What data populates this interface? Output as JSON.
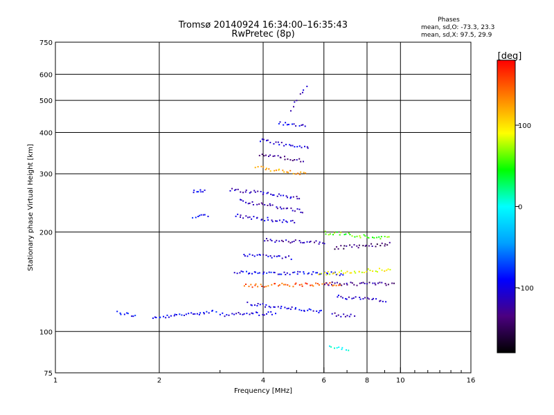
{
  "title": {
    "line1": "Tromsø 20140924 16:34:00–16:35:43",
    "line2": "RwPretec (8p)"
  },
  "stats": {
    "heading": "Phases",
    "o_mode": "mean, sd,O:  -73.3, 23.3",
    "x_mode": "mean, sd,X:  97.5, 29.9"
  },
  "chart_data": {
    "type": "scatter",
    "xlabel": "Frequency [MHz]",
    "ylabel": "Stationary phase Virtual Height [km]",
    "xscale": "log",
    "yscale": "log",
    "xlim": [
      1,
      16
    ],
    "ylim": [
      75,
      750
    ],
    "x_ticks": [
      1,
      2,
      4,
      6,
      8,
      10,
      16
    ],
    "x_tick_labels": [
      "1",
      "2",
      "4",
      "6",
      "8",
      "10",
      "16"
    ],
    "y_ticks": [
      75,
      100,
      200,
      300,
      400,
      500,
      600,
      750
    ],
    "y_tick_labels": [
      "75",
      "100",
      "200",
      "300",
      "400",
      "500",
      "600",
      "750"
    ],
    "grid": true,
    "colorbar": {
      "label": "[deg]",
      "ticks": [
        100,
        0,
        -100
      ],
      "tick_labels": [
        "100",
        "0",
        "-100"
      ],
      "range": [
        -180,
        180
      ],
      "colormap": [
        "#000000",
        "#4b0080",
        "#0000ff",
        "#00a0ff",
        "#00ffff",
        "#00ff00",
        "#ffff00",
        "#ff8000",
        "#ff0000"
      ]
    },
    "traces": [
      {
        "x": [
          1.5,
          1.7
        ],
        "y": [
          115,
          112
        ],
        "phase": -90
      },
      {
        "x": [
          1.9,
          2.9
        ],
        "y": [
          110,
          116
        ],
        "phase": -92
      },
      {
        "x": [
          2.5,
          2.7
        ],
        "y": [
          267,
          267
        ],
        "phase": -95
      },
      {
        "x": [
          2.5,
          2.75
        ],
        "y": [
          222,
          225
        ],
        "phase": -95
      },
      {
        "x": [
          3.0,
          4.3
        ],
        "y": [
          113,
          114
        ],
        "phase": -105
      },
      {
        "x": [
          3.6,
          5.9
        ],
        "y": [
          122,
          115
        ],
        "phase": -100
      },
      {
        "x": [
          3.2,
          5.1
        ],
        "y": [
          270,
          255
        ],
        "phase": -110
      },
      {
        "x": [
          3.4,
          5.2
        ],
        "y": [
          250,
          232
        ],
        "phase": -115
      },
      {
        "x": [
          3.3,
          4.9
        ],
        "y": [
          225,
          215
        ],
        "phase": -110
      },
      {
        "x": [
          3.8,
          5.3
        ],
        "y": [
          315,
          300
        ],
        "phase": 120
      },
      {
        "x": [
          3.9,
          5.2
        ],
        "y": [
          345,
          330
        ],
        "phase": -125
      },
      {
        "x": [
          3.9,
          5.4
        ],
        "y": [
          380,
          360
        ],
        "phase": -105
      },
      {
        "x": [
          4.4,
          5.3
        ],
        "y": [
          430,
          420
        ],
        "phase": -100
      },
      {
        "x": [
          4.8,
          5.3
        ],
        "y": [
          470,
          560
        ],
        "phase": -110
      },
      {
        "x": [
          4.0,
          6.0
        ],
        "y": [
          190,
          186
        ],
        "phase": -120
      },
      {
        "x": [
          3.5,
          4.8
        ],
        "y": [
          172,
          168
        ],
        "phase": -100
      },
      {
        "x": [
          3.3,
          6.8
        ],
        "y": [
          152,
          150
        ],
        "phase": -95
      },
      {
        "x": [
          3.5,
          6.7
        ],
        "y": [
          138,
          140
        ],
        "phase": 150
      },
      {
        "x": [
          5.8,
          9.3
        ],
        "y": [
          150,
          155
        ],
        "phase": 90
      },
      {
        "x": [
          6.0,
          9.5
        ],
        "y": [
          140,
          140
        ],
        "phase": -130
      },
      {
        "x": [
          6.4,
          9.3
        ],
        "y": [
          180,
          185
        ],
        "phase": -140
      },
      {
        "x": [
          6.0,
          9.2
        ],
        "y": [
          200,
          192
        ],
        "phase": 60
      },
      {
        "x": [
          6.5,
          9.0
        ],
        "y": [
          128,
          125
        ],
        "phase": -110
      },
      {
        "x": [
          6.3,
          7.3
        ],
        "y": [
          113,
          112
        ],
        "phase": -120
      },
      {
        "x": [
          6.2,
          7.0
        ],
        "y": [
          90,
          89
        ],
        "phase": 0
      }
    ]
  }
}
